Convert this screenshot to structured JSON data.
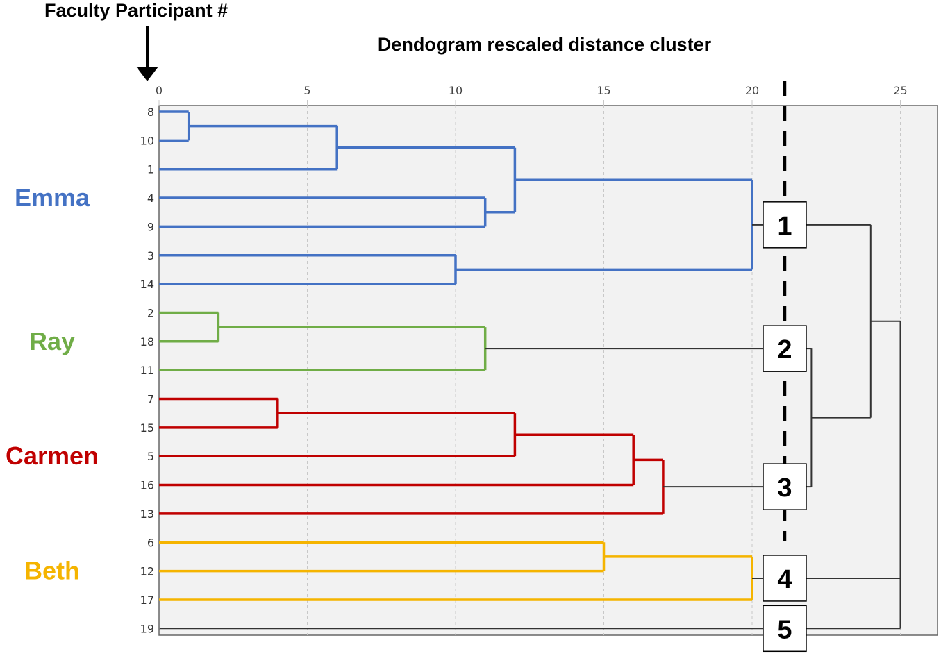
{
  "chart_data": {
    "type": "dendrogram",
    "title": "Dendogram rescaled distance cluster",
    "y_axis_label": "Faculty Participant #",
    "x_ticks": [
      0,
      5,
      10,
      15,
      20,
      25
    ],
    "xlim": [
      0,
      26
    ],
    "cut_distance": 21.1,
    "leaves": [
      "8",
      "10",
      "1",
      "4",
      "9",
      "3",
      "14",
      "2",
      "18",
      "11",
      "7",
      "15",
      "5",
      "16",
      "13",
      "6",
      "12",
      "17",
      "19"
    ],
    "merges": [
      {
        "a": "8",
        "b": "10",
        "d": 1,
        "id": "m1",
        "color": "#4472c4"
      },
      {
        "a": "m1",
        "b": "1",
        "d": 6,
        "id": "m2",
        "color": "#4472c4"
      },
      {
        "a": "4",
        "b": "9",
        "d": 11,
        "id": "m3",
        "color": "#4472c4"
      },
      {
        "a": "m2",
        "b": "m3",
        "d": 12,
        "id": "m4",
        "color": "#4472c4"
      },
      {
        "a": "3",
        "b": "14",
        "d": 10,
        "id": "m5",
        "color": "#4472c4"
      },
      {
        "a": "m4",
        "b": "m5",
        "d": 20,
        "id": "c1",
        "color": "#4472c4"
      },
      {
        "a": "2",
        "b": "18",
        "d": 2,
        "id": "m6",
        "color": "#70ad47"
      },
      {
        "a": "m6",
        "b": "11",
        "d": 11,
        "id": "c2",
        "color": "#70ad47"
      },
      {
        "a": "7",
        "b": "15",
        "d": 4,
        "id": "m7",
        "color": "#c00000"
      },
      {
        "a": "m7",
        "b": "5",
        "d": 12,
        "id": "m8",
        "color": "#c00000"
      },
      {
        "a": "m8",
        "b": "16",
        "d": 16,
        "id": "m9",
        "color": "#c00000"
      },
      {
        "a": "m9",
        "b": "13",
        "d": 17,
        "id": "c3",
        "color": "#c00000"
      },
      {
        "a": "6",
        "b": "12",
        "d": 15,
        "id": "m10",
        "color": "#f5b400"
      },
      {
        "a": "m10",
        "b": "17",
        "d": 20,
        "id": "c4",
        "color": "#f5b400"
      },
      {
        "a": "c2",
        "b": "c3",
        "d": 22,
        "id": "m11",
        "color": "#333333"
      },
      {
        "a": "c1",
        "b": "m11",
        "d": 24,
        "id": "m12",
        "color": "#333333"
      },
      {
        "a": "c4",
        "b": "19",
        "d": 25,
        "id": "m13",
        "color": "#333333"
      },
      {
        "a": "m12",
        "b": "m13",
        "d": 25,
        "id": "root",
        "color": "#333333"
      }
    ],
    "cluster_boxes": [
      {
        "label": "1",
        "node": "c1"
      },
      {
        "label": "2",
        "node": "c2"
      },
      {
        "label": "3",
        "node": "c3"
      },
      {
        "label": "4",
        "node": "c4"
      },
      {
        "label": "5",
        "node": "19"
      }
    ],
    "group_labels": [
      {
        "name": "Emma",
        "color": "#4472c4",
        "leaves": [
          "8",
          "10",
          "1",
          "4",
          "9",
          "3",
          "14"
        ]
      },
      {
        "name": "Ray",
        "color": "#70ad47",
        "leaves": [
          "2",
          "18",
          "11"
        ]
      },
      {
        "name": "Carmen",
        "color": "#c00000",
        "leaves": [
          "7",
          "15",
          "5",
          "16",
          "13"
        ]
      },
      {
        "name": "Beth",
        "color": "#f5b400",
        "leaves": [
          "6",
          "12",
          "17"
        ]
      }
    ]
  }
}
